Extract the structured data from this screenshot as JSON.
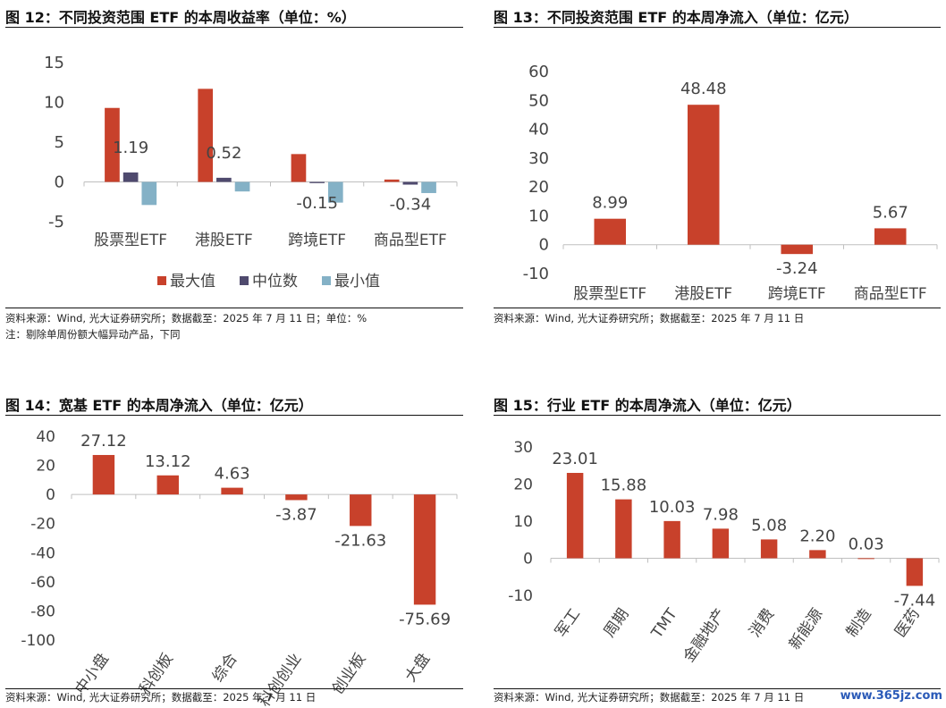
{
  "charts": [
    {
      "figure_title": "图 12：不同投资范围 ETF 的本周收益率（单位：%）",
      "source": "资料来源：Wind, 光大证券研究所；数据截至：2025 年 7 月 11 日；单位：%",
      "note": "注：剔除单周份额大幅异动产品，下同",
      "chart_data": {
        "type": "bar",
        "categories": [
          "股票型ETF",
          "港股ETF",
          "跨境ETF",
          "商品型ETF"
        ],
        "series": [
          {
            "name": "最大值",
            "color": "#c8412b",
            "values": [
              9.3,
              11.7,
              3.5,
              0.3
            ]
          },
          {
            "name": "中位数",
            "color": "#4f4a6e",
            "values": [
              1.19,
              0.52,
              -0.15,
              -0.34
            ]
          },
          {
            "name": "最小值",
            "color": "#84b1c6",
            "values": [
              -2.9,
              -1.2,
              -2.6,
              -1.4
            ]
          }
        ],
        "data_labels": [
          "1.19",
          "0.52",
          "-0.15",
          "-0.34"
        ],
        "yticks": [
          "15",
          "10",
          "5",
          "0",
          "-5"
        ],
        "ylim": [
          -5,
          15
        ],
        "legend": "bottom"
      }
    },
    {
      "figure_title": "图 13：不同投资范围 ETF 的本周净流入（单位：亿元）",
      "source": "资料来源：Wind, 光大证券研究所；数据截至：2025 年 7 月 11 日",
      "chart_data": {
        "type": "bar",
        "categories": [
          "股票型ETF",
          "港股ETF",
          "跨境ETF",
          "商品型ETF"
        ],
        "values": [
          8.99,
          48.48,
          -3.24,
          5.67
        ],
        "data_labels": [
          "8.99",
          "48.48",
          "-3.24",
          "5.67"
        ],
        "yticks": [
          "60",
          "50",
          "40",
          "30",
          "20",
          "10",
          "0",
          "-10"
        ],
        "ylim": [
          -10,
          60
        ],
        "color": "#c8412b"
      }
    },
    {
      "figure_title": "图 14：宽基 ETF 的本周净流入（单位：亿元）",
      "source": "资料来源：Wind, 光大证券研究所；数据截至：2025 年 7 月 11 日",
      "chart_data": {
        "type": "bar",
        "categories": [
          "中小盘",
          "科创板",
          "综合",
          "科创创业",
          "创业板",
          "大盘"
        ],
        "values": [
          27.12,
          13.12,
          4.63,
          -3.87,
          -21.63,
          -75.69
        ],
        "data_labels": [
          "27.12",
          "13.12",
          "4.63",
          "-3.87",
          "-21.63",
          "-75.69"
        ],
        "yticks": [
          "40",
          "20",
          "0",
          "-20",
          "-40",
          "-60",
          "-80",
          "-100"
        ],
        "ylim": [
          -100,
          40
        ],
        "color": "#c8412b"
      }
    },
    {
      "figure_title": "图 15：行业 ETF 的本周净流入（单位：亿元）",
      "source": "资料来源：Wind, 光大证券研究所；数据截至：2025 年 7 月 11 日",
      "chart_data": {
        "type": "bar",
        "categories": [
          "军工",
          "周期",
          "TMT",
          "金融地产",
          "消费",
          "新能源",
          "制造",
          "医药"
        ],
        "values": [
          23.01,
          15.88,
          10.03,
          7.98,
          5.08,
          2.2,
          0.03,
          -7.44
        ],
        "data_labels": [
          "23.01",
          "15.88",
          "10.03",
          "7.98",
          "5.08",
          "2.20",
          "0.03",
          "-7.44"
        ],
        "yticks": [
          "30",
          "20",
          "10",
          "0",
          "-10"
        ],
        "ylim": [
          -10,
          30
        ],
        "color": "#c8412b"
      }
    }
  ],
  "watermark": "www.365jz.com"
}
